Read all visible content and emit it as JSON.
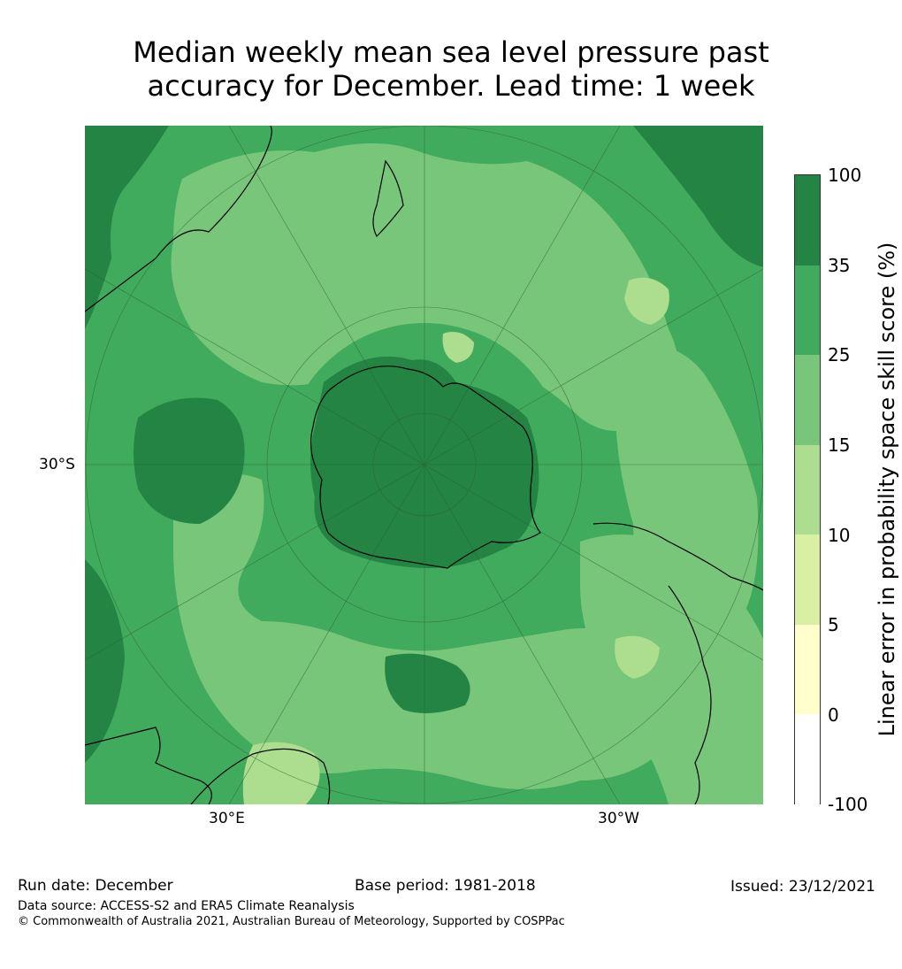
{
  "title": {
    "line1": "Median weekly mean sea level pressure past",
    "line2": "accuracy for December. Lead time: 1 week"
  },
  "map": {
    "projection": "South polar stereographic",
    "lat_label": "30°S",
    "lon_labels": {
      "east": "30°E",
      "west": "30°W"
    }
  },
  "colorbar": {
    "label": "Linear error in probability space skill score (%)",
    "ticks": [
      "100",
      "35",
      "25",
      "15",
      "10",
      "5",
      "0",
      "-100"
    ],
    "colors": [
      "#238443",
      "#41ab5d",
      "#78c679",
      "#addd8e",
      "#d9f0a3",
      "#ffffcc",
      "#ffffff"
    ]
  },
  "footer": {
    "run_date": "Run date: December",
    "base_period": "Base period: 1981-2018",
    "issued": "Issued: 23/12/2021",
    "data_source": "Data source: ACCESS-S2 and ERA5 Climate Reanalysis",
    "copyright": "© Commonwealth of Australia 2021, Australian Bureau of Meteorology, Supported by COSPPac"
  }
}
